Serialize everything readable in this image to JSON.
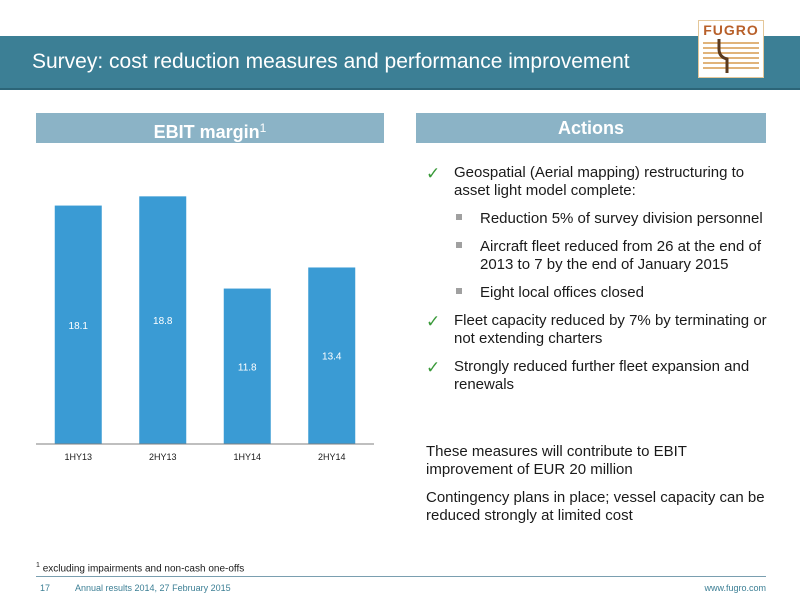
{
  "slide": {
    "title": "Survey: cost reduction measures and performance improvement",
    "logo_text": "FUGRO"
  },
  "left_panel": {
    "header": "EBIT margin",
    "header_footnote_ref": "1"
  },
  "chart_data": {
    "type": "bar",
    "categories": [
      "1HY13",
      "2HY13",
      "1HY14",
      "2HY14"
    ],
    "values": [
      18.1,
      18.8,
      11.8,
      13.4
    ],
    "data_labels": [
      "18.1",
      "18.8",
      "11.8",
      "13.4"
    ],
    "ylim": [
      0,
      20.8
    ],
    "bar_color": "#3a9bd4",
    "grid": false,
    "legend": "none"
  },
  "right_panel": {
    "header": "Actions",
    "items": [
      {
        "text": "Geospatial (Aerial mapping) restructuring to asset light model complete:",
        "sub": [
          "Reduction 5% of survey division personnel",
          "Aircraft fleet reduced from 26 at the end of 2013 to 7 by the end of January 2015",
          "Eight local offices closed"
        ]
      },
      {
        "text": "Fleet capacity reduced by 7% by terminating or not extending charters",
        "sub": []
      },
      {
        "text": "Strongly reduced further fleet expansion and renewals",
        "sub": []
      }
    ],
    "check_icon": "check-icon",
    "check_color": "#3a9a3a",
    "measures": [
      "These measures will contribute to EBIT improvement of EUR 20 million",
      "Contingency plans in place; vessel capacity can be reduced strongly at limited cost"
    ]
  },
  "footnote": {
    "marker": "1",
    "text": "excluding impairments and non-cash one-offs"
  },
  "footer": {
    "page_number": "17",
    "doc_title": "Annual results 2014, 27 February 2015",
    "url": "www.fugro.com"
  },
  "colors": {
    "title_bar": "#3c7f95",
    "section_header": "#8bb3c6",
    "footer_text": "#3c7f95"
  }
}
